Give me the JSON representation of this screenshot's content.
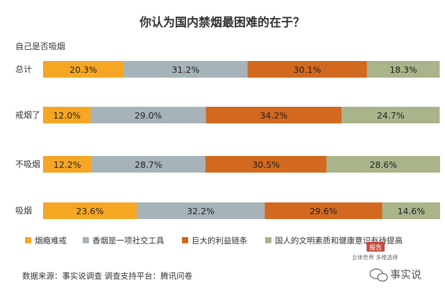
{
  "chart_data": {
    "type": "bar",
    "orientation": "horizontal",
    "stacked": true,
    "percent": true,
    "title": "你认为国内禁烟最困难的在于？",
    "ylabel": "自己是否吸烟",
    "categories": [
      "总计",
      "戒烟了",
      "不吸烟",
      "吸烟"
    ],
    "series": [
      {
        "name": "烟瘾难戒",
        "values": [
          20.3,
          12.0,
          12.2,
          23.6
        ],
        "labels": [
          "20.3%",
          "12.0%",
          "12.2%",
          "23.6%"
        ],
        "color": "#F5A623"
      },
      {
        "name": "香烟是一项社交工具",
        "values": [
          31.2,
          29.0,
          28.7,
          32.2
        ],
        "labels": [
          "31.2%",
          "29.0%",
          "28.7%",
          "32.2%"
        ],
        "color": "#A6B3B8"
      },
      {
        "name": "巨大的利益链条",
        "values": [
          30.1,
          34.2,
          30.5,
          29.6
        ],
        "labels": [
          "30.1%",
          "34.2%",
          "30.5%",
          "29.6%"
        ],
        "color": "#D2691E"
      },
      {
        "name": "国人的文明素质和健康意识有待提高",
        "values": [
          18.3,
          24.7,
          28.6,
          14.6
        ],
        "labels": [
          "18.3%",
          "24.7%",
          "28.6%",
          "14.6%"
        ],
        "color": "#A9B48A"
      }
    ],
    "xlim": [
      0,
      100
    ],
    "legend": "bottom",
    "grid": false
  },
  "footer": {
    "source": "数据来源：事实说调查    调查支持平台：腾讯问卷",
    "logo_text": "事实说",
    "watermark_badge": "报告",
    "watermark_tagline": "立体世界 多维选择"
  }
}
